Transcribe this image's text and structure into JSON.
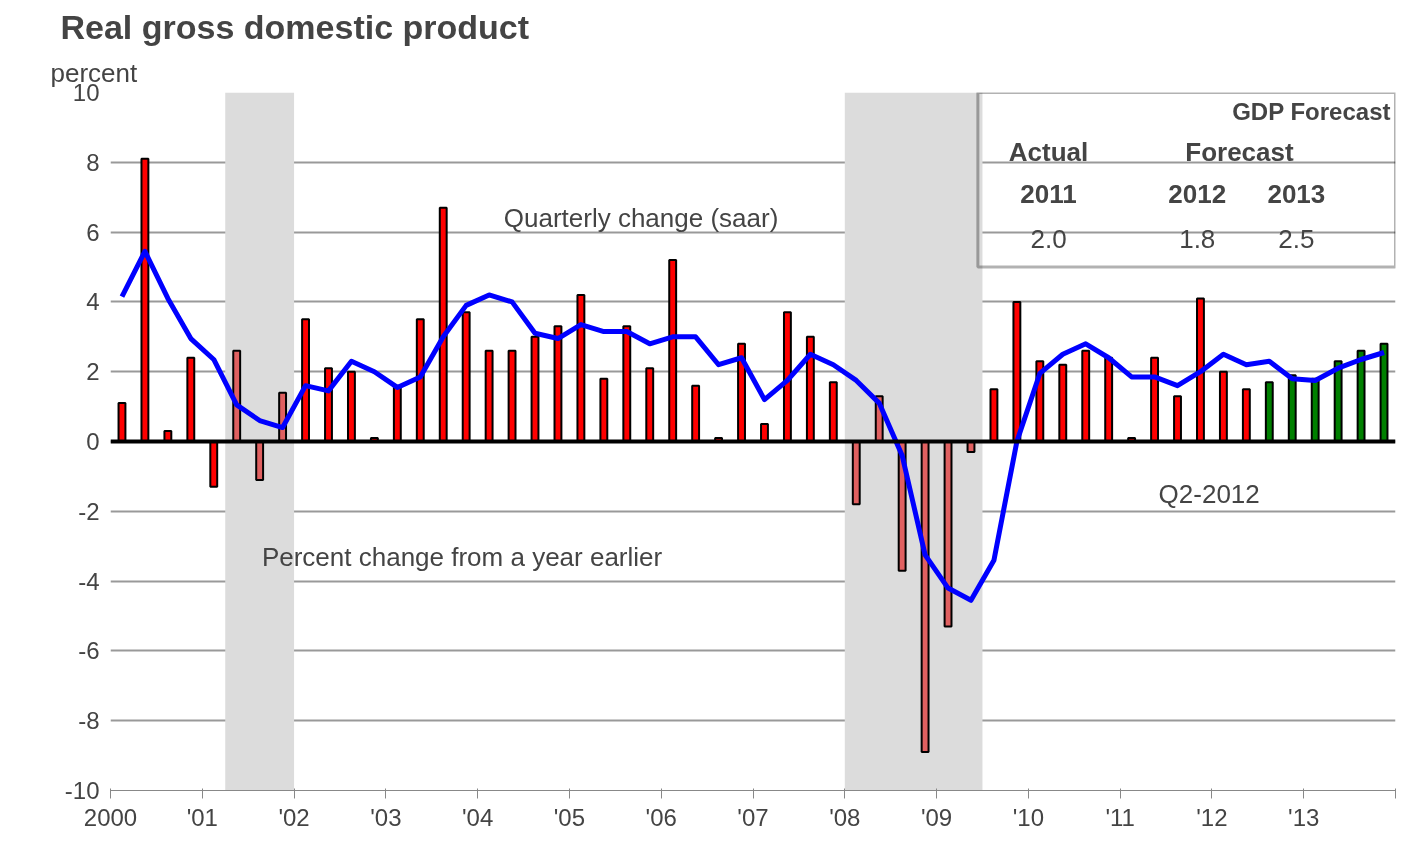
{
  "chart_data": {
    "type": "bar",
    "title": "Real gross domestic product",
    "ylabel": "percent",
    "x": [
      2000.125,
      2000.375,
      2000.625,
      2000.875,
      2001.125,
      2001.375,
      2001.625,
      2001.875,
      2002.125,
      2002.375,
      2002.625,
      2002.875,
      2003.125,
      2003.375,
      2003.625,
      2003.875,
      2004.125,
      2004.375,
      2004.625,
      2004.875,
      2005.125,
      2005.375,
      2005.625,
      2005.875,
      2006.125,
      2006.375,
      2006.625,
      2006.875,
      2007.125,
      2007.375,
      2007.625,
      2007.875,
      2008.125,
      2008.375,
      2008.625,
      2008.875,
      2009.125,
      2009.375,
      2009.625,
      2009.875,
      2010.125,
      2010.375,
      2010.625,
      2010.875,
      2011.125,
      2011.375,
      2011.625,
      2011.875,
      2012.125,
      2012.375,
      2012.625,
      2012.875,
      2013.125,
      2013.375,
      2013.625,
      2013.875
    ],
    "series": [
      {
        "colors": [
          "#ff0000",
          "#ff0000",
          "#ff0000",
          "#ff0000",
          "#ff0000",
          "#e06060",
          "#e06060",
          "#e06060",
          "#ff0000",
          "#ff0000",
          "#ff0000",
          "#ff0000",
          "#ff0000",
          "#ff0000",
          "#ff0000",
          "#ff0000",
          "#ff0000",
          "#ff0000",
          "#ff0000",
          "#ff0000",
          "#ff0000",
          "#ff0000",
          "#ff0000",
          "#ff0000",
          "#ff0000",
          "#ff0000",
          "#ff0000",
          "#ff0000",
          "#ff0000",
          "#ff0000",
          "#ff0000",
          "#ff0000",
          "#e06060",
          "#e06060",
          "#e06060",
          "#e06060",
          "#e06060",
          "#e06060",
          "#ff0000",
          "#ff0000",
          "#ff0000",
          "#ff0000",
          "#ff0000",
          "#ff0000",
          "#ff0000",
          "#ff0000",
          "#ff0000",
          "#ff0000",
          "#ff0000",
          "#ff0000",
          "#008000",
          "#008000",
          "#008000",
          "#008000",
          "#008000",
          "#008000"
        ],
        "values": [
          1.1,
          8.1,
          0.3,
          2.4,
          -1.3,
          2.6,
          -1.1,
          1.4,
          3.5,
          2.1,
          2.0,
          0.1,
          1.6,
          3.5,
          6.7,
          3.7,
          2.6,
          2.6,
          3.0,
          3.3,
          4.2,
          1.8,
          3.3,
          2.1,
          5.2,
          1.6,
          0.1,
          2.8,
          0.5,
          3.7,
          3.0,
          1.7,
          -1.8,
          1.3,
          -3.7,
          -8.9,
          -5.3,
          -0.3,
          1.5,
          4.0,
          2.3,
          2.2,
          2.6,
          2.4,
          0.1,
          2.4,
          1.3,
          4.1,
          2.0,
          1.5,
          1.7,
          1.9,
          1.8,
          2.3,
          2.6,
          2.8
        ]
      },
      {
        "type": "line",
        "color": "#0000ff",
        "values": [
          4.15,
          5.45,
          4.1,
          2.95,
          2.35,
          1.05,
          0.6,
          0.4,
          1.6,
          1.45,
          2.3,
          2.0,
          1.55,
          1.85,
          3.0,
          3.9,
          4.2,
          4.0,
          3.1,
          2.95,
          3.35,
          3.15,
          3.15,
          2.8,
          3.0,
          3.0,
          2.2,
          2.4,
          1.2,
          1.75,
          2.5,
          2.2,
          1.75,
          1.1,
          -0.4,
          -3.25,
          -4.2,
          -4.55,
          -3.4,
          0.0,
          1.95,
          2.5,
          2.8,
          2.4,
          1.85,
          1.85,
          1.6,
          2.0,
          2.5,
          2.2,
          2.3,
          1.8,
          1.75,
          2.1,
          2.35,
          2.55
        ]
      }
    ],
    "xlim": [
      2000,
      2014
    ],
    "xticks": [
      2000,
      {
        "value": 2001,
        "label": "'01"
      },
      {
        "value": 2002,
        "label": "'02"
      },
      {
        "value": 2003,
        "label": "'03"
      },
      {
        "value": 2004,
        "label": "'04"
      },
      {
        "value": 2005,
        "label": "'05"
      },
      {
        "value": 2006,
        "label": "'06"
      },
      {
        "value": 2007,
        "label": "'07"
      },
      {
        "value": 2008,
        "label": "'08"
      },
      {
        "value": 2009,
        "label": "'09"
      },
      {
        "value": 2010,
        "label": "'10"
      },
      {
        "value": 2011,
        "label": "'11"
      },
      {
        "value": 2012,
        "label": "'12"
      },
      {
        "value": 2013,
        "label": "'13"
      },
      {
        "value": 2014,
        "label": null
      }
    ],
    "ylim": [
      -10,
      10
    ],
    "yticks": [
      -10,
      -8,
      -6,
      -4,
      -2,
      0,
      2,
      4,
      6,
      8,
      10
    ],
    "grid": "y",
    "bands": [
      {
        "axis": "x",
        "from": 2001.25,
        "to": 2002.0,
        "color": "#dcdcdc"
      },
      {
        "axis": "x",
        "from": 2008.0,
        "to": 2009.5,
        "color": "#dcdcdc"
      }
    ],
    "ref_lines": [
      {
        "axis": "y",
        "value": 0,
        "color": "#000000"
      }
    ],
    "annotations": [
      "Quarterly change (saar)",
      "Percent change from a year earlier",
      "Q2-2012",
      "GDP Forecast",
      "Actual",
      "Forecast",
      "2011",
      "2012",
      "2013",
      "2.0",
      "1.8",
      "2.5"
    ]
  }
}
